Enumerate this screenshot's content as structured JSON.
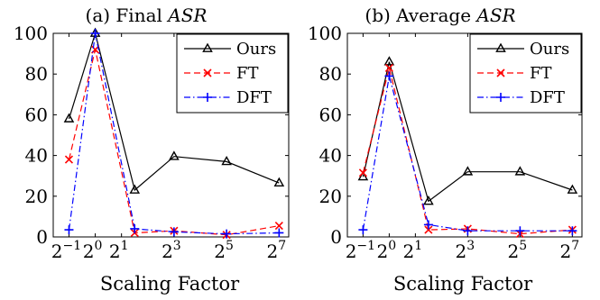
{
  "chart_data": [
    {
      "type": "line",
      "title": "(a) Final ASR",
      "title_prefix": "(a) Final",
      "title_italic": "ASR",
      "xlabel": "Scaling Factor",
      "ylabel": "",
      "xscale": "log2",
      "x": [
        0.5,
        1,
        2.83,
        8,
        32,
        128
      ],
      "x_ticks": [
        0.5,
        1,
        2,
        8,
        32,
        128
      ],
      "x_tick_labels": [
        {
          "base": "2",
          "exp": "−1"
        },
        {
          "base": "2",
          "exp": "0"
        },
        {
          "base": "2",
          "exp": "1"
        },
        {
          "base": "2",
          "exp": "3"
        },
        {
          "base": "2",
          "exp": "5"
        },
        {
          "base": "2",
          "exp": "7"
        }
      ],
      "ylim": [
        0,
        100
      ],
      "y_ticks": [
        0,
        20,
        40,
        60,
        80,
        100
      ],
      "legend_position": "top-right",
      "series": [
        {
          "name": "Ours",
          "color": "#000000",
          "marker": "triangle",
          "dash": "solid",
          "values": [
            58,
            100,
            23,
            39.5,
            37,
            26.5
          ]
        },
        {
          "name": "FT",
          "color": "#ff0000",
          "marker": "x",
          "dash": "dashed",
          "values": [
            38,
            92,
            2,
            3,
            1,
            5.5
          ]
        },
        {
          "name": "DFT",
          "color": "#0000ff",
          "marker": "plus",
          "dash": "dashdot",
          "values": [
            3.5,
            100,
            4,
            2.5,
            1.5,
            2
          ]
        }
      ]
    },
    {
      "type": "line",
      "title": "(b) Average ASR",
      "title_prefix": "(b) Average",
      "title_italic": "ASR",
      "xlabel": "Scaling Factor",
      "ylabel": "",
      "xscale": "log2",
      "x": [
        0.5,
        1,
        2.83,
        8,
        32,
        128
      ],
      "x_ticks": [
        0.5,
        1,
        2,
        8,
        32,
        128
      ],
      "x_tick_labels": [
        {
          "base": "2",
          "exp": "−1"
        },
        {
          "base": "2",
          "exp": "0"
        },
        {
          "base": "2",
          "exp": "1"
        },
        {
          "base": "2",
          "exp": "3"
        },
        {
          "base": "2",
          "exp": "5"
        },
        {
          "base": "2",
          "exp": "7"
        }
      ],
      "ylim": [
        0,
        100
      ],
      "y_ticks": [
        0,
        20,
        40,
        60,
        80,
        100
      ],
      "legend_position": "top-right",
      "series": [
        {
          "name": "Ours",
          "color": "#000000",
          "marker": "triangle",
          "dash": "solid",
          "values": [
            29.5,
            86,
            17.5,
            32,
            32,
            23
          ]
        },
        {
          "name": "FT",
          "color": "#ff0000",
          "marker": "x",
          "dash": "dashed",
          "values": [
            31.5,
            83,
            3.5,
            4,
            1.5,
            3.5
          ]
        },
        {
          "name": "DFT",
          "color": "#0000ff",
          "marker": "plus",
          "dash": "dashdot",
          "values": [
            3.5,
            79,
            6,
            3,
            3,
            3
          ]
        }
      ]
    }
  ]
}
